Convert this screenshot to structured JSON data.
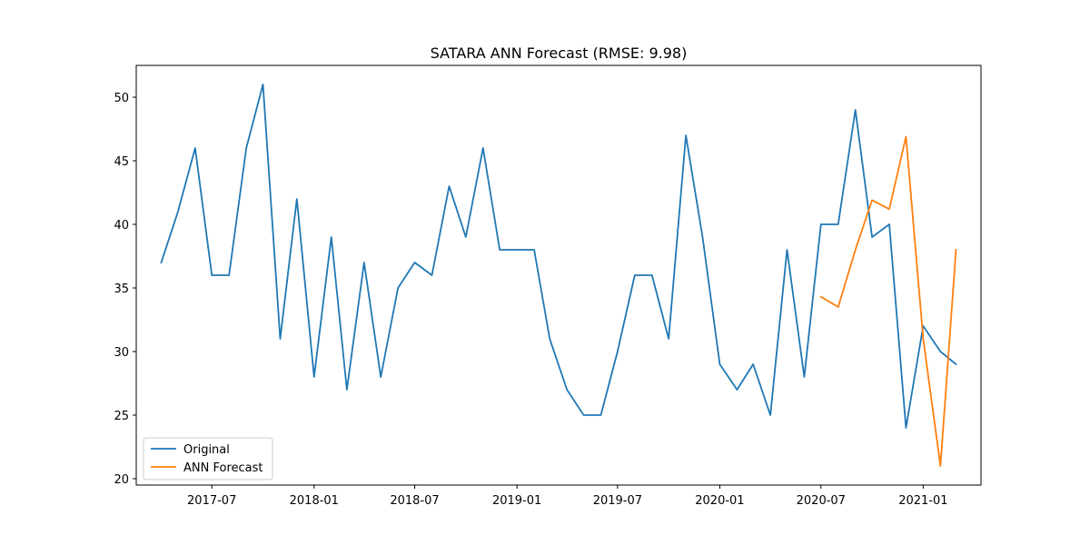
{
  "chart_data": {
    "type": "line",
    "title": "SATARA ANN Forecast (RMSE: 9.98)",
    "xlabel": "",
    "ylabel": "",
    "ylim": [
      19.5,
      52.5
    ],
    "xlim": [
      "2017-02-15",
      "2021-04-15"
    ],
    "y_ticks": [
      20,
      25,
      30,
      35,
      40,
      45,
      50
    ],
    "x_ticks": [
      "2017-07",
      "2018-01",
      "2018-07",
      "2019-01",
      "2019-07",
      "2020-01",
      "2020-07",
      "2021-01"
    ],
    "grid": false,
    "legend_position": "lower-left",
    "series": [
      {
        "name": "Original",
        "color": "#1f77b4",
        "x": [
          "2017-04",
          "2017-05",
          "2017-06",
          "2017-07",
          "2017-08",
          "2017-09",
          "2017-10",
          "2017-11",
          "2017-12",
          "2018-01",
          "2018-02",
          "2018-03",
          "2018-04",
          "2018-05",
          "2018-06",
          "2018-07",
          "2018-08",
          "2018-09",
          "2018-10",
          "2018-11",
          "2018-12",
          "2019-01",
          "2019-02",
          "2019-03",
          "2019-04",
          "2019-05",
          "2019-06",
          "2019-07",
          "2019-08",
          "2019-09",
          "2019-10",
          "2019-11",
          "2019-12",
          "2020-01",
          "2020-02",
          "2020-03",
          "2020-04",
          "2020-05",
          "2020-06",
          "2020-07",
          "2020-08",
          "2020-09",
          "2020-10",
          "2020-11",
          "2020-12",
          "2021-01",
          "2021-02",
          "2021-03"
        ],
        "values": [
          37,
          41,
          46,
          36,
          36,
          46,
          51,
          31,
          42,
          28,
          39,
          27,
          37,
          28,
          35,
          37,
          36,
          43,
          39,
          46,
          38,
          38,
          38,
          31,
          27,
          25,
          25,
          30,
          36,
          36,
          31,
          47,
          39,
          29,
          27,
          29,
          25,
          38,
          28,
          40,
          40,
          49,
          39,
          40,
          24,
          32,
          30,
          29
        ]
      },
      {
        "name": "ANN Forecast",
        "color": "#ff7f0e",
        "x": [
          "2020-07",
          "2020-08",
          "2020-09",
          "2020-10",
          "2020-11",
          "2020-12",
          "2021-01",
          "2021-02",
          "2021-03"
        ],
        "values": [
          34.3,
          33.5,
          38,
          41.9,
          41.2,
          46.9,
          31,
          21,
          38
        ]
      }
    ]
  }
}
